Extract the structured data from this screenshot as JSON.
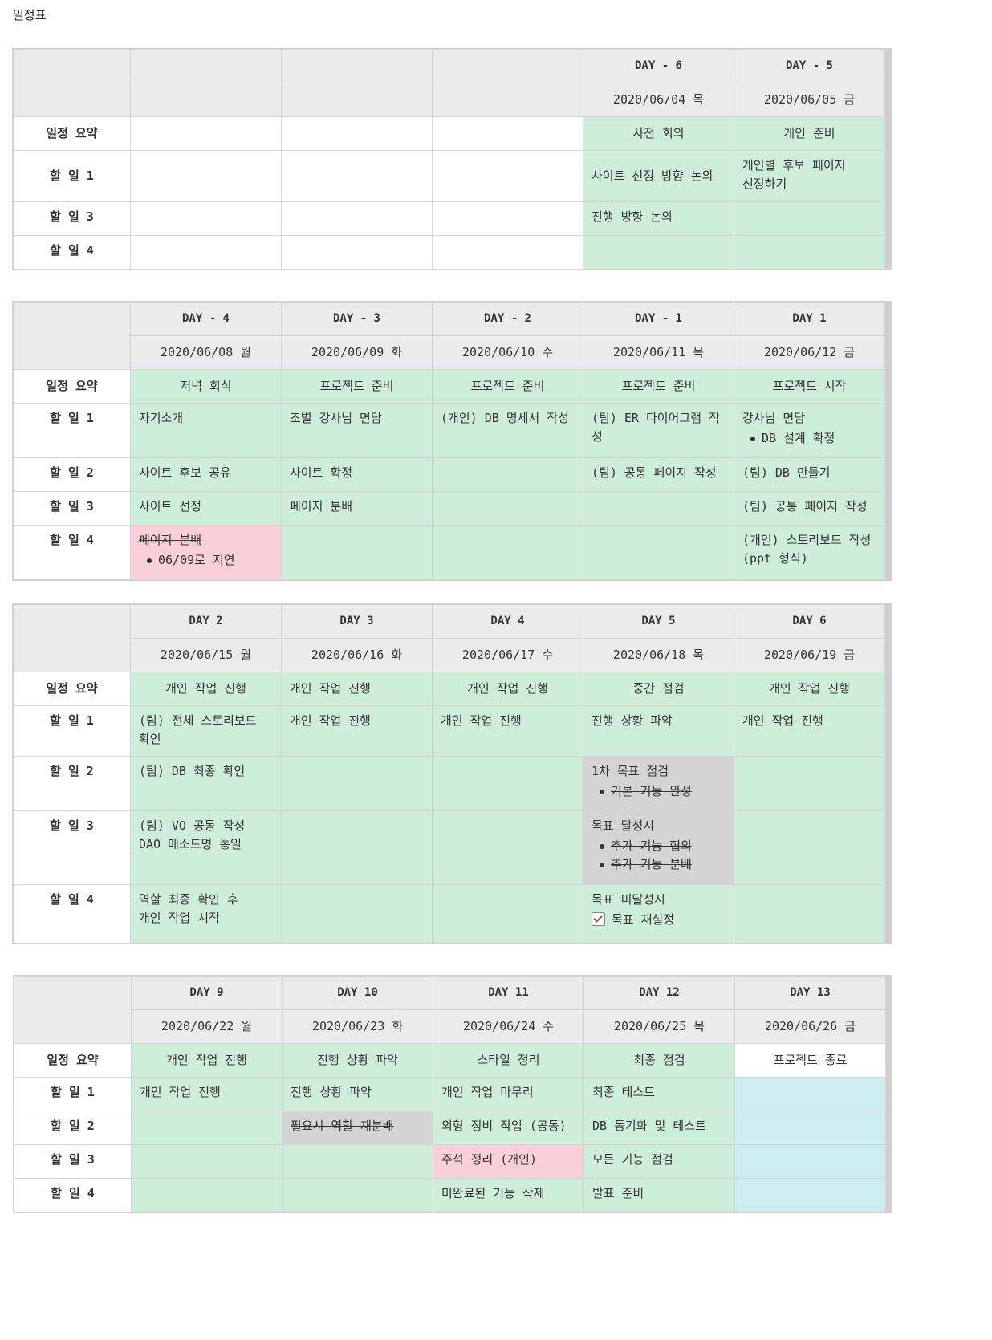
{
  "page_title": "일정표",
  "row_labels": {
    "summary": "일정 요약",
    "todo1": "할 일 1",
    "todo2": "할 일 2",
    "todo3": "할 일 3",
    "todo4": "할 일 4"
  },
  "colors": {
    "green": "#cfeeda",
    "pink": "#f9d0d8",
    "gray": "#d4d4d4",
    "cyan": "#cdeef0",
    "header": "#ebebeb"
  },
  "week1": {
    "days": [
      "",
      "",
      "",
      "DAY - 6",
      "DAY - 5"
    ],
    "dates": [
      "",
      "",
      "",
      "2020/06/04 목",
      "2020/06/05 금"
    ],
    "summary": [
      "",
      "",
      "",
      "사전 회의",
      "개인 준비"
    ],
    "todo1": [
      "",
      "",
      "",
      "사이트 선정 방향 논의",
      "개인별 후보 페이지 선정하기"
    ],
    "todo3": [
      "",
      "",
      "",
      "진행 방향 논의",
      ""
    ],
    "todo4": [
      "",
      "",
      "",
      "",
      ""
    ]
  },
  "week2": {
    "days": [
      "DAY - 4",
      "DAY - 3",
      "DAY - 2",
      "DAY - 1",
      "DAY 1"
    ],
    "dates": [
      "2020/06/08 월",
      "2020/06/09 화",
      "2020/06/10 수",
      "2020/06/11 목",
      "2020/06/12 금"
    ],
    "summary": [
      "저녁 회식",
      "프로젝트 준비",
      "프로젝트 준비",
      "프로젝트 준비",
      "프로젝트 시작"
    ],
    "todo1": [
      "자기소개",
      "조별 강사님 면담",
      "(개인) DB 명세서 작성",
      "(팀) ER 다이어그램 작성",
      "강사님 면담"
    ],
    "todo1_sub": "DB 설계 확정",
    "todo2": [
      "사이트 후보 공유",
      "사이트 확정",
      "",
      "(팀) 공통 페이지 작성",
      "(팀) DB 만들기"
    ],
    "todo3": [
      "사이트 선정",
      "페이지 분배",
      "",
      "",
      "(팀) 공통 페이지 작성"
    ],
    "todo4": [
      "페이지 분배",
      "",
      "",
      "",
      "(개인) 스토리보드 작성 (ppt 형식)"
    ],
    "todo4_sub": "06/09로 지연"
  },
  "week3": {
    "days": [
      "DAY 2",
      "DAY 3",
      "DAY 4",
      "DAY 5",
      "DAY 6"
    ],
    "dates": [
      "2020/06/15 월",
      "2020/06/16 화",
      "2020/06/17 수",
      "2020/06/18 목",
      "2020/06/19 금"
    ],
    "summary": [
      "개인 작업 진행",
      "개인 작업 진행",
      "개인 작업 진행",
      "중간 점검",
      "개인 작업 진행"
    ],
    "todo1": [
      "(팀) 전체 스토리보드 확인",
      "개인 작업 진행",
      "개인 작업 진행",
      "진행 상황 파악",
      "개인 작업 진행"
    ],
    "todo2": [
      "(팀) DB 최종 확인",
      "",
      "",
      "1차 목표 점검",
      ""
    ],
    "todo2_sub": "기본 기능 완성",
    "todo3_line1": "(팀) VO 공동 작성",
    "todo3_line2": "DAO 메소드명 통일",
    "todo3_day5": "목표 달성시",
    "todo3_day5_subs": [
      "추가 기능 협의",
      "추가 기능 분배"
    ],
    "todo4_line1": "역할 최종 확인 후",
    "todo4_line2": "개인 작업 시작",
    "todo4_day5": "목표 미달성시",
    "todo4_day5_check": "목표 재설정"
  },
  "week4": {
    "days": [
      "DAY 9",
      "DAY 10",
      "DAY 11",
      "DAY 12",
      "DAY 13"
    ],
    "dates": [
      "2020/06/22 월",
      "2020/06/23 화",
      "2020/06/24 수",
      "2020/06/25 목",
      "2020/06/26 금"
    ],
    "summary": [
      "개인 작업 진행",
      "진행 상황 파악",
      "스타일 정리",
      "최종 점검",
      "프로젝트 종료"
    ],
    "todo1": [
      "개인 작업 진행",
      "진행 상황 파악",
      "개인 작업 마무리",
      "최종 테스트",
      ""
    ],
    "todo2": [
      "",
      "필요시 역할 재분배",
      "외형 정비 작업 (공동)",
      "DB 동기화 및 테스트",
      ""
    ],
    "todo3": [
      "",
      "",
      "주석 정리 (개인)",
      "모든 기능 점검",
      ""
    ],
    "todo4": [
      "",
      "",
      "미완료된 기능 삭제",
      "발표 준비",
      ""
    ]
  }
}
